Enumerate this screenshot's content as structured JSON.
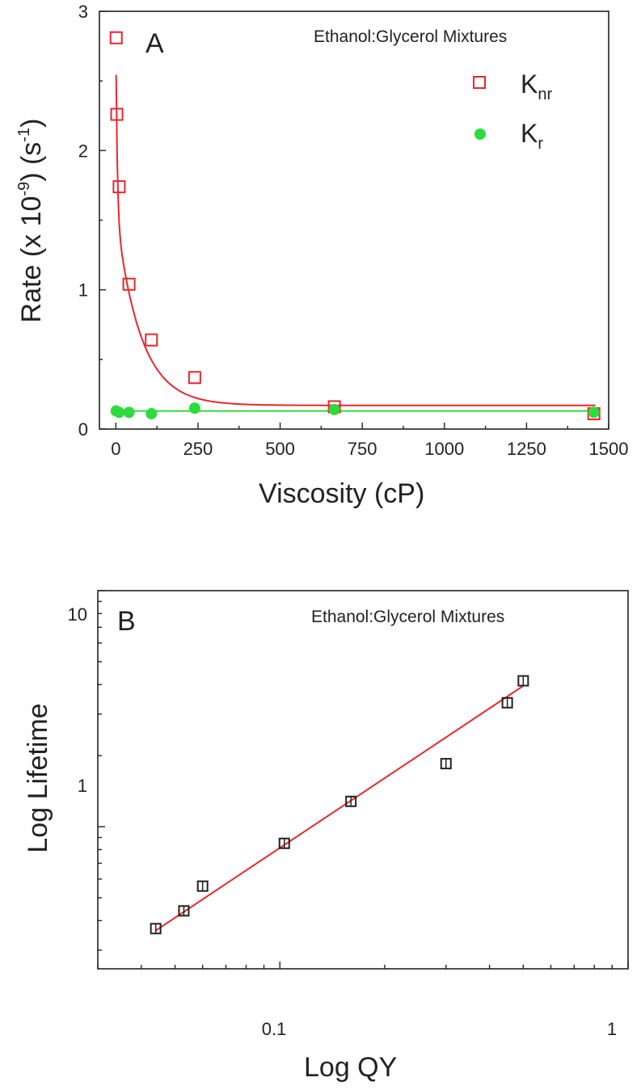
{
  "chart_data": [
    {
      "panel": "A",
      "type": "scatter",
      "annotation": "Ethanol:Glycerol Mixtures",
      "xlabel": "Viscosity (cP)",
      "ylabel": "Rate (x 10^-9) (s^-1)",
      "xlim": [
        -50,
        1500
      ],
      "ylim": [
        0,
        3
      ],
      "xticks": [
        0,
        250,
        500,
        750,
        1000,
        1250,
        1500
      ],
      "yticks": [
        0,
        1,
        2,
        3
      ],
      "legend_position": "top-right",
      "series": [
        {
          "name": "Knr",
          "marker": "open-square",
          "color": "#e8262d",
          "points": [
            [
              1,
              2.81
            ],
            [
              3,
              2.26
            ],
            [
              10,
              1.74
            ],
            [
              40,
              1.04
            ],
            [
              108,
              0.64
            ],
            [
              240,
              0.37
            ],
            [
              665,
              0.16
            ],
            [
              1455,
              0.11
            ]
          ],
          "fit": "decay"
        },
        {
          "name": "Kr",
          "marker": "filled-circle",
          "color": "#2ddc3c",
          "points": [
            [
              1,
              0.13
            ],
            [
              10,
              0.12
            ],
            [
              40,
              0.12
            ],
            [
              108,
              0.11
            ],
            [
              240,
              0.15
            ],
            [
              665,
              0.14
            ],
            [
              1455,
              0.12
            ]
          ],
          "fit": "constant"
        }
      ],
      "fit_color": "#e8262d",
      "fit_green": "#2ddc3c"
    },
    {
      "panel": "B",
      "type": "scatter",
      "annotation": "Ethanol:Glycerol Mixtures",
      "xlabel": "Log QY",
      "ylabel": "Log Lifetime",
      "xscale": "log",
      "yscale": "log",
      "xlim": [
        0.03,
        1
      ],
      "ylim": [
        0.25,
        10
      ],
      "xticklabels": [
        "0.1",
        "1"
      ],
      "yticklabels": [
        "1",
        "10"
      ],
      "series": [
        {
          "marker": "open-square",
          "color": "#222222",
          "points": [
            [
              0.044,
              0.37
            ],
            [
              0.053,
              0.44
            ],
            [
              0.06,
              0.56
            ],
            [
              0.103,
              0.85
            ],
            [
              0.16,
              1.28
            ],
            [
              0.3,
              1.85
            ],
            [
              0.45,
              3.35
            ],
            [
              0.5,
              4.15
            ]
          ]
        }
      ],
      "fit": {
        "type": "linear-log",
        "color": "#e8262d",
        "x": [
          0.044,
          0.5
        ],
        "y": [
          0.363,
          3.95
        ]
      }
    }
  ]
}
